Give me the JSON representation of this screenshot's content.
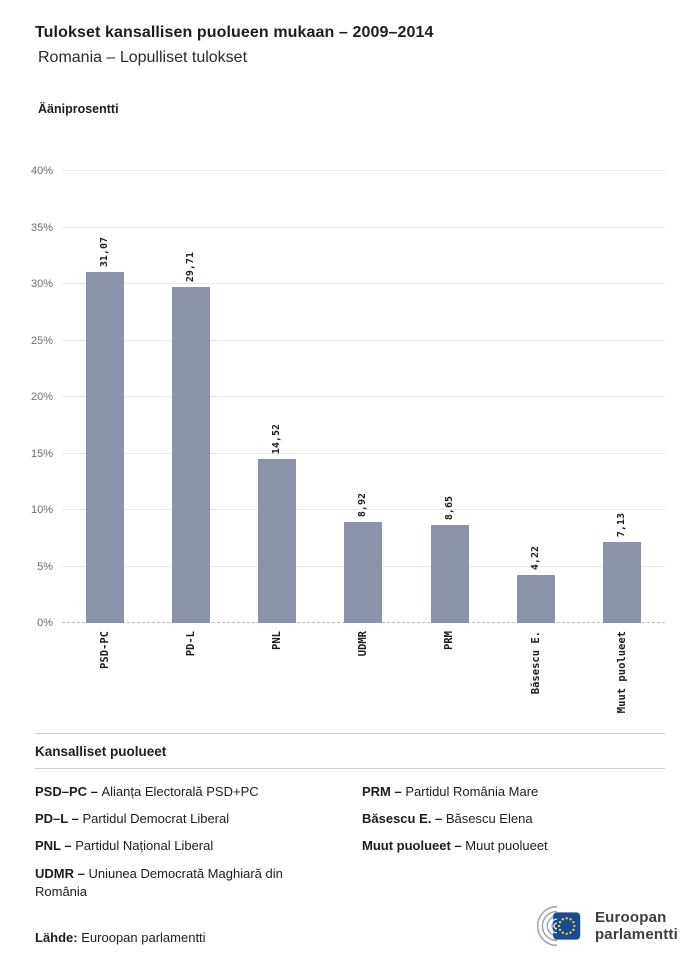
{
  "header": {
    "title": "Tulokset kansallisen puolueen mukaan – 2009–2014",
    "subtitle": "Romania – Lopulliset tulokset"
  },
  "chart_data": {
    "type": "bar",
    "title": "Tulokset kansallisen puolueen mukaan – 2009–2014",
    "subtitle": "Romania – Lopulliset tulokset",
    "ylabel": "Ääniprosentti",
    "categories": [
      "PSD-PC",
      "PD-L",
      "PNL",
      "UDMR",
      "PRM",
      "Băsescu E.",
      "Muut puolueet"
    ],
    "values": [
      31.07,
      29.71,
      14.52,
      8.92,
      8.65,
      4.22,
      7.13
    ],
    "value_labels": [
      "31,07",
      "29,71",
      "14,52",
      "8,92",
      "8,65",
      "4,22",
      "7,13"
    ],
    "ylim": [
      0,
      40
    ],
    "ytick_step": 5,
    "yticks": [
      "0%",
      "5%",
      "10%",
      "15%",
      "20%",
      "25%",
      "30%",
      "35%",
      "40%"
    ],
    "bar_color": "#8b93ab",
    "grid": true,
    "legend_position": "none"
  },
  "legend": {
    "heading": "Kansalliset puolueet",
    "separator": "–",
    "columns": [
      [
        {
          "abbr": "PSD–PC",
          "name": "Alianța Electorală PSD+PC"
        },
        {
          "abbr": "PD–L",
          "name": "Partidul Democrat Liberal"
        },
        {
          "abbr": "PNL",
          "name": "Partidul Național Liberal"
        },
        {
          "abbr": "UDMR",
          "name": "Uniunea Democrată Maghiară din România"
        }
      ],
      [
        {
          "abbr": "PRM",
          "name": "Partidul România Mare"
        },
        {
          "abbr": "Băsescu E.",
          "name": "Băsescu Elena"
        },
        {
          "abbr": "Muut puolueet",
          "name": "Muut puolueet"
        }
      ]
    ]
  },
  "footer": {
    "source_label": "Lähde:",
    "source": "Euroopan parlamentti"
  },
  "logo": {
    "line1": "Euroopan",
    "line2": "parlamentti",
    "flag_color": "#1a4c96",
    "star_color": "#ffd617",
    "arc_color": "#93a1ad"
  }
}
